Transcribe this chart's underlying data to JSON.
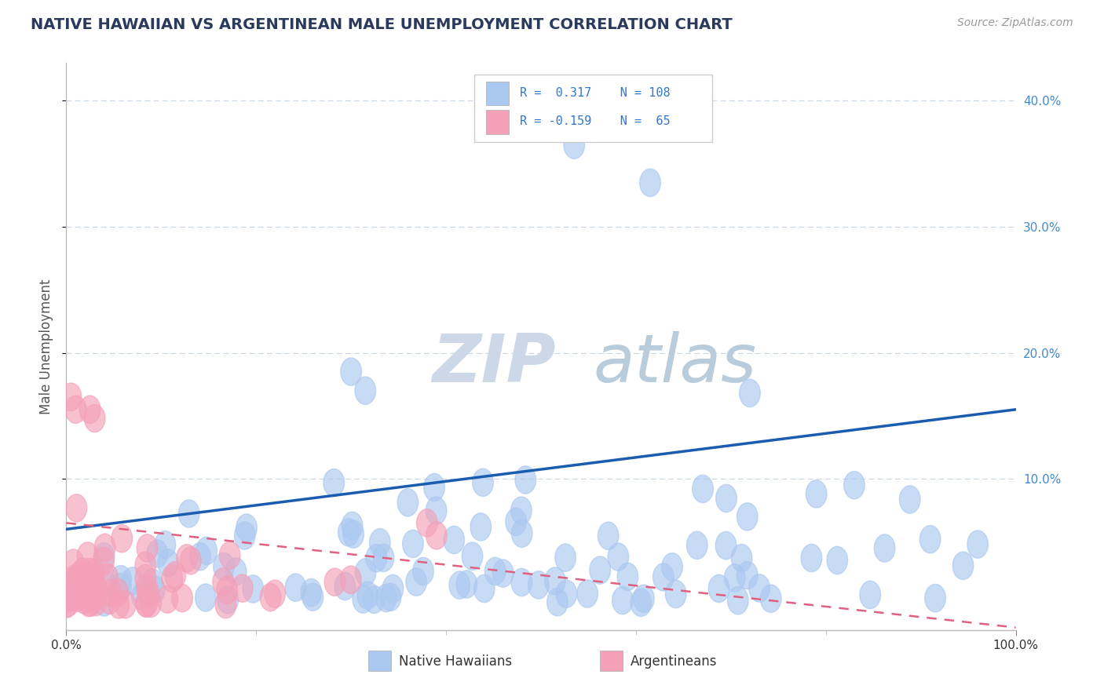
{
  "title": "NATIVE HAWAIIAN VS ARGENTINEAN MALE UNEMPLOYMENT CORRELATION CHART",
  "source_text": "Source: ZipAtlas.com",
  "ylabel": "Male Unemployment",
  "xlim": [
    0,
    1.0
  ],
  "ylim": [
    -0.02,
    0.43
  ],
  "r_native": 0.317,
  "n_native": 108,
  "r_argent": -0.159,
  "n_argent": 65,
  "native_color": "#aac8f0",
  "argent_color": "#f4a0b8",
  "native_line_color": "#1a5cb0",
  "argent_line_color": "#e06080",
  "background_color": "#ffffff",
  "grid_color": "#c8d4e8",
  "title_color": "#2a3a5c",
  "watermark_zip_color": "#ccd8e8",
  "watermark_atlas_color": "#b8ccdc",
  "legend_r_color": "#3377cc",
  "ytick_color": "#4488cc",
  "native_line_y0": 0.06,
  "native_line_y1": 0.155,
  "argent_line_y0": 0.065,
  "argent_line_y1": -0.018,
  "argent_line_x1": 1.0
}
